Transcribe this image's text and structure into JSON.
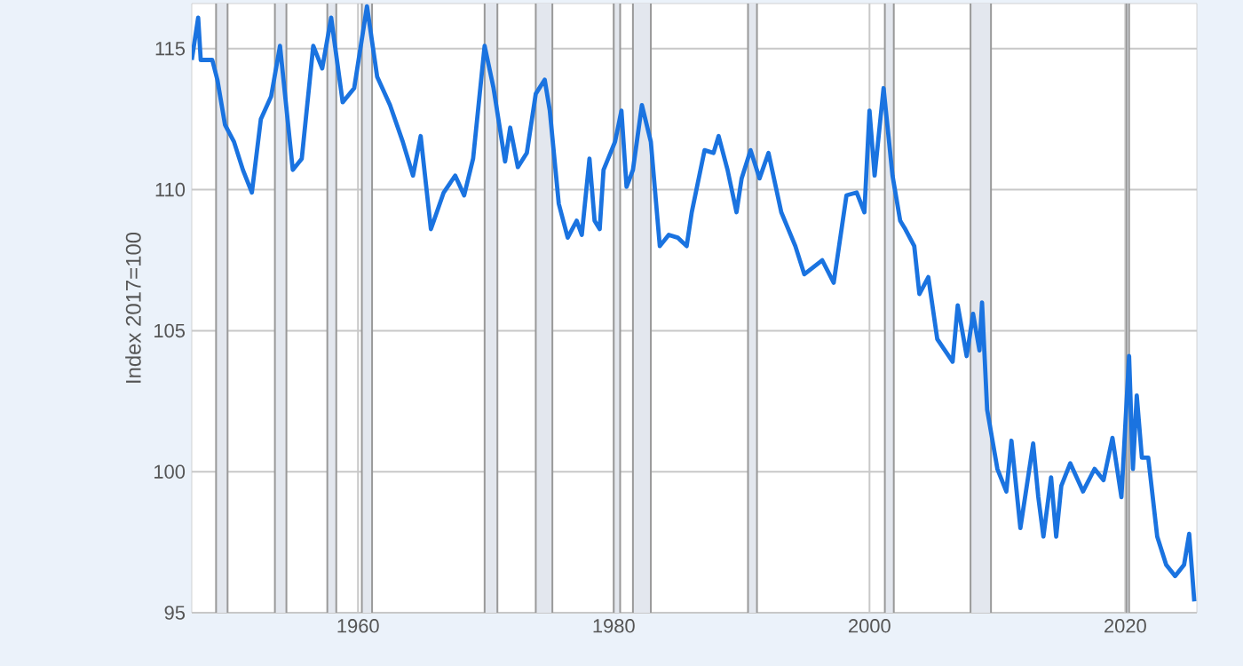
{
  "chart_data": {
    "type": "line",
    "ylabel": "Index 2017=100",
    "xlim": [
      1947,
      2025.6
    ],
    "xticks": [
      1960,
      1980,
      2000,
      2020
    ],
    "ylim": [
      95,
      116.6
    ],
    "yticks": [
      95,
      100,
      105,
      110,
      115
    ],
    "grid": true,
    "marker": "none",
    "line_style": "solid",
    "bands": [
      {
        "axis": "x",
        "from": 1948.9,
        "to": 1949.8,
        "color": "#e3e7ee"
      },
      {
        "axis": "x",
        "from": 1953.5,
        "to": 1954.4,
        "color": "#e3e7ee"
      },
      {
        "axis": "x",
        "from": 1957.6,
        "to": 1958.3,
        "color": "#e3e7ee"
      },
      {
        "axis": "x",
        "from": 1960.3,
        "to": 1961.1,
        "color": "#e3e7ee"
      },
      {
        "axis": "x",
        "from": 1969.9,
        "to": 1970.9,
        "color": "#e3e7ee"
      },
      {
        "axis": "x",
        "from": 1973.9,
        "to": 1975.2,
        "color": "#e3e7ee"
      },
      {
        "axis": "x",
        "from": 1980.0,
        "to": 1980.5,
        "color": "#e3e7ee"
      },
      {
        "axis": "x",
        "from": 1981.5,
        "to": 1982.9,
        "color": "#e3e7ee"
      },
      {
        "axis": "x",
        "from": 1990.5,
        "to": 1991.2,
        "color": "#e3e7ee"
      },
      {
        "axis": "x",
        "from": 2001.2,
        "to": 2001.9,
        "color": "#e3e7ee"
      },
      {
        "axis": "x",
        "from": 2007.9,
        "to": 2009.5,
        "color": "#e3e7ee"
      },
      {
        "axis": "x",
        "from": 2020.1,
        "to": 2020.3,
        "color": "#e3e7ee"
      }
    ],
    "series": [
      {
        "color": "#1a73e0",
        "x": [
          1947.0,
          1947.5,
          1947.7,
          1948.6,
          1949.0,
          1949.6,
          1950.3,
          1951.0,
          1951.7,
          1952.4,
          1953.2,
          1953.9,
          1954.9,
          1955.6,
          1956.5,
          1957.2,
          1957.9,
          1958.8,
          1959.7,
          1960.7,
          1961.5,
          1962.5,
          1963.5,
          1964.3,
          1964.9,
          1965.7,
          1966.7,
          1967.6,
          1968.3,
          1969.0,
          1969.9,
          1970.6,
          1971.5,
          1971.9,
          1972.5,
          1973.2,
          1973.9,
          1974.6,
          1975.0,
          1975.7,
          1976.4,
          1977.1,
          1977.5,
          1978.1,
          1978.5,
          1978.9,
          1979.2,
          1980.1,
          1980.6,
          1981.0,
          1981.5,
          1982.2,
          1982.9,
          1983.6,
          1984.3,
          1985.0,
          1985.7,
          1986.1,
          1987.1,
          1987.8,
          1988.2,
          1988.9,
          1989.6,
          1990.0,
          1990.7,
          1991.4,
          1992.1,
          1993.1,
          1994.2,
          1994.9,
          1996.3,
          1997.2,
          1998.2,
          1999.0,
          1999.6,
          2000.0,
          2000.4,
          2001.1,
          2001.8,
          2002.4,
          2002.8,
          2003.5,
          2003.9,
          2004.6,
          2005.3,
          2006.5,
          2006.9,
          2007.6,
          2008.1,
          2008.6,
          2008.8,
          2009.2,
          2010.0,
          2010.7,
          2011.1,
          2011.8,
          2012.2,
          2012.8,
          2013.2,
          2013.6,
          2014.2,
          2014.6,
          2015.0,
          2015.7,
          2016.7,
          2017.6,
          2018.3,
          2019.0,
          2019.7,
          2020.3,
          2020.6,
          2020.9,
          2021.3,
          2021.8,
          2022.5,
          2023.2,
          2023.9,
          2024.6,
          2025.0,
          2025.4
        ],
        "values": [
          114.6,
          116.1,
          114.6,
          114.6,
          113.9,
          112.3,
          111.7,
          110.7,
          109.9,
          112.5,
          113.3,
          115.1,
          110.7,
          111.1,
          115.1,
          114.3,
          116.1,
          113.1,
          113.6,
          116.5,
          114.0,
          113.0,
          111.7,
          110.5,
          111.9,
          108.6,
          109.9,
          110.5,
          109.8,
          111.1,
          115.1,
          113.6,
          111.0,
          112.2,
          110.8,
          111.3,
          113.4,
          113.9,
          112.8,
          109.5,
          108.3,
          108.9,
          108.4,
          111.1,
          108.9,
          108.6,
          110.7,
          111.7,
          112.8,
          110.1,
          110.7,
          113.0,
          111.7,
          108.0,
          108.4,
          108.3,
          108.0,
          109.2,
          111.4,
          111.3,
          111.9,
          110.7,
          109.2,
          110.4,
          111.4,
          110.4,
          111.3,
          109.2,
          108.0,
          107.0,
          107.5,
          106.7,
          109.8,
          109.9,
          109.2,
          112.8,
          110.5,
          113.6,
          110.5,
          108.9,
          108.6,
          108.0,
          106.3,
          106.9,
          104.7,
          103.9,
          105.9,
          104.1,
          105.6,
          104.3,
          106.0,
          102.2,
          100.1,
          99.3,
          101.1,
          98.0,
          99.2,
          101.0,
          99.1,
          97.7,
          99.8,
          97.7,
          99.5,
          100.3,
          99.3,
          100.1,
          99.7,
          101.2,
          99.1,
          104.1,
          100.1,
          102.7,
          100.5,
          100.5,
          97.7,
          96.7,
          96.3,
          96.7,
          97.8,
          95.4
        ]
      }
    ]
  }
}
